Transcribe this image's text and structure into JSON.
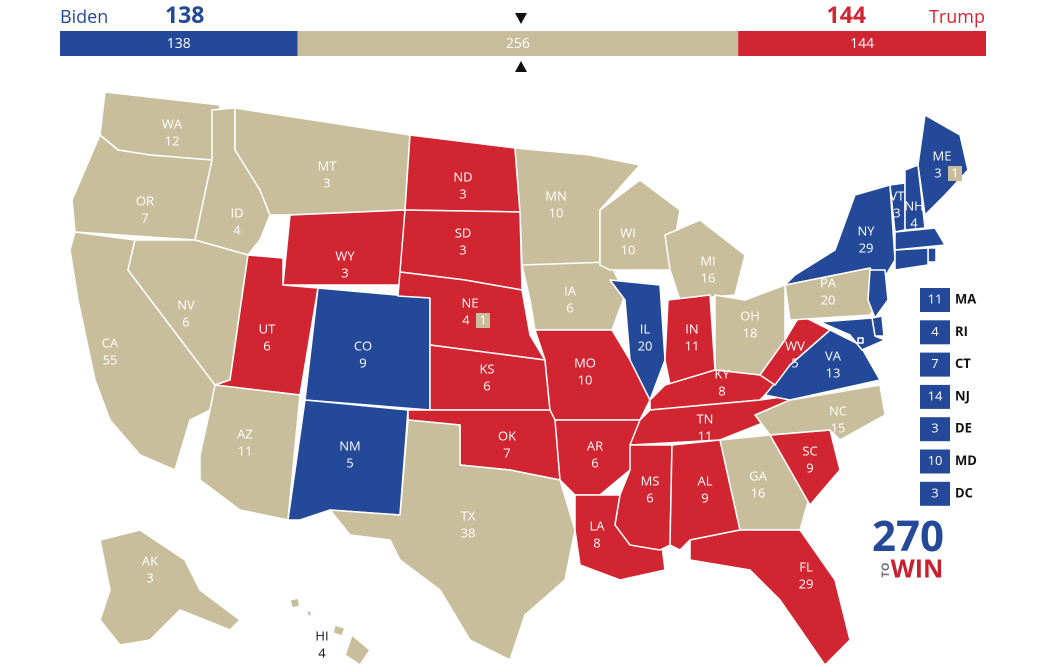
{
  "header": {
    "left_name": "Biden",
    "right_name": "Trump"
  },
  "bar": {
    "values": [
      138,
      256,
      144
    ],
    "colors": [
      "#244999",
      "#c9be9b",
      "#d22532"
    ]
  },
  "party_colors": {
    "D": "#244999",
    "R": "#d22532",
    "T": "#c9be9b"
  },
  "states": [
    {
      "abbr": "WA",
      "ev": 12,
      "party": "T"
    },
    {
      "abbr": "OR",
      "ev": 7,
      "party": "T"
    },
    {
      "abbr": "CA",
      "ev": 55,
      "party": "T"
    },
    {
      "abbr": "ID",
      "ev": 4,
      "party": "T"
    },
    {
      "abbr": "NV",
      "ev": 6,
      "party": "T"
    },
    {
      "abbr": "MT",
      "ev": 3,
      "party": "T"
    },
    {
      "abbr": "WY",
      "ev": 3,
      "party": "R"
    },
    {
      "abbr": "UT",
      "ev": 6,
      "party": "R"
    },
    {
      "abbr": "AZ",
      "ev": 11,
      "party": "T"
    },
    {
      "abbr": "CO",
      "ev": 9,
      "party": "D"
    },
    {
      "abbr": "NM",
      "ev": 5,
      "party": "D"
    },
    {
      "abbr": "ND",
      "ev": 3,
      "party": "R"
    },
    {
      "abbr": "SD",
      "ev": 3,
      "party": "R"
    },
    {
      "abbr": "NE",
      "ev": 4,
      "party": "R",
      "split": 1
    },
    {
      "abbr": "KS",
      "ev": 6,
      "party": "R"
    },
    {
      "abbr": "OK",
      "ev": 7,
      "party": "R"
    },
    {
      "abbr": "TX",
      "ev": 38,
      "party": "T"
    },
    {
      "abbr": "MN",
      "ev": 10,
      "party": "T"
    },
    {
      "abbr": "IA",
      "ev": 6,
      "party": "T"
    },
    {
      "abbr": "MO",
      "ev": 10,
      "party": "R"
    },
    {
      "abbr": "AR",
      "ev": 6,
      "party": "R"
    },
    {
      "abbr": "LA",
      "ev": 8,
      "party": "R"
    },
    {
      "abbr": "WI",
      "ev": 10,
      "party": "T"
    },
    {
      "abbr": "IL",
      "ev": 20,
      "party": "D"
    },
    {
      "abbr": "MI",
      "ev": 16,
      "party": "T"
    },
    {
      "abbr": "IN",
      "ev": 11,
      "party": "R"
    },
    {
      "abbr": "OH",
      "ev": 18,
      "party": "T"
    },
    {
      "abbr": "KY",
      "ev": 8,
      "party": "R"
    },
    {
      "abbr": "TN",
      "ev": 11,
      "party": "R"
    },
    {
      "abbr": "MS",
      "ev": 6,
      "party": "R"
    },
    {
      "abbr": "AL",
      "ev": 9,
      "party": "R"
    },
    {
      "abbr": "GA",
      "ev": 16,
      "party": "T"
    },
    {
      "abbr": "FL",
      "ev": 29,
      "party": "R"
    },
    {
      "abbr": "SC",
      "ev": 9,
      "party": "R"
    },
    {
      "abbr": "NC",
      "ev": 15,
      "party": "T"
    },
    {
      "abbr": "VA",
      "ev": 13,
      "party": "D"
    },
    {
      "abbr": "WV",
      "ev": 5,
      "party": "R"
    },
    {
      "abbr": "PA",
      "ev": 20,
      "party": "T"
    },
    {
      "abbr": "NY",
      "ev": 29,
      "party": "D"
    },
    {
      "abbr": "VT",
      "ev": 3,
      "party": "D"
    },
    {
      "abbr": "NH",
      "ev": 4,
      "party": "D"
    },
    {
      "abbr": "ME",
      "ev": 3,
      "party": "D",
      "split": 1
    },
    {
      "abbr": "MA",
      "ev": 11,
      "party": "D"
    },
    {
      "abbr": "RI",
      "ev": 4,
      "party": "D"
    },
    {
      "abbr": "CT",
      "ev": 7,
      "party": "D"
    },
    {
      "abbr": "NJ",
      "ev": 14,
      "party": "D"
    },
    {
      "abbr": "DE",
      "ev": 3,
      "party": "D"
    },
    {
      "abbr": "MD",
      "ev": 10,
      "party": "D"
    },
    {
      "abbr": "DC",
      "ev": 3,
      "party": "D"
    },
    {
      "abbr": "AK",
      "ev": 3,
      "party": "T"
    },
    {
      "abbr": "HI",
      "ev": 4,
      "party": "T"
    }
  ],
  "logo": {
    "number": "270",
    "small": "TO",
    "word": "WIN"
  }
}
